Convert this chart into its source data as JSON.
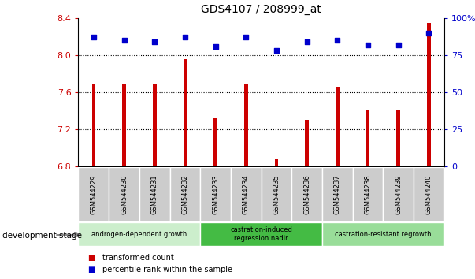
{
  "title": "GDS4107 / 208999_at",
  "samples": [
    "GSM544229",
    "GSM544230",
    "GSM544231",
    "GSM544232",
    "GSM544233",
    "GSM544234",
    "GSM544235",
    "GSM544236",
    "GSM544237",
    "GSM544238",
    "GSM544239",
    "GSM544240"
  ],
  "bar_values": [
    7.69,
    7.69,
    7.69,
    7.96,
    7.32,
    7.68,
    6.87,
    7.3,
    7.65,
    7.4,
    7.4,
    8.35
  ],
  "dot_values": [
    87,
    85,
    84,
    87,
    81,
    87,
    78,
    84,
    85,
    82,
    82,
    90
  ],
  "bar_color": "#cc0000",
  "dot_color": "#0000cc",
  "ymin": 6.8,
  "ymax": 8.4,
  "y2min": 0,
  "y2max": 100,
  "yticks": [
    6.8,
    7.2,
    7.6,
    8.0,
    8.4
  ],
  "y2ticks": [
    0,
    25,
    50,
    75,
    100
  ],
  "grid_values": [
    8.0,
    7.6,
    7.2
  ],
  "groups": [
    {
      "label": "androgen-dependent growth",
      "start": 0,
      "end": 3,
      "color": "#cceecc"
    },
    {
      "label": "castration-induced\nregression nadir",
      "start": 4,
      "end": 7,
      "color": "#44bb44"
    },
    {
      "label": "castration-resistant regrowth",
      "start": 8,
      "end": 11,
      "color": "#99dd99"
    }
  ],
  "xlabel_left": "development stage",
  "legend_items": [
    {
      "label": "transformed count",
      "color": "#cc0000"
    },
    {
      "label": "percentile rank within the sample",
      "color": "#0000cc"
    }
  ],
  "sample_bg_color": "#cccccc",
  "plot_area_color": "#ffffff"
}
